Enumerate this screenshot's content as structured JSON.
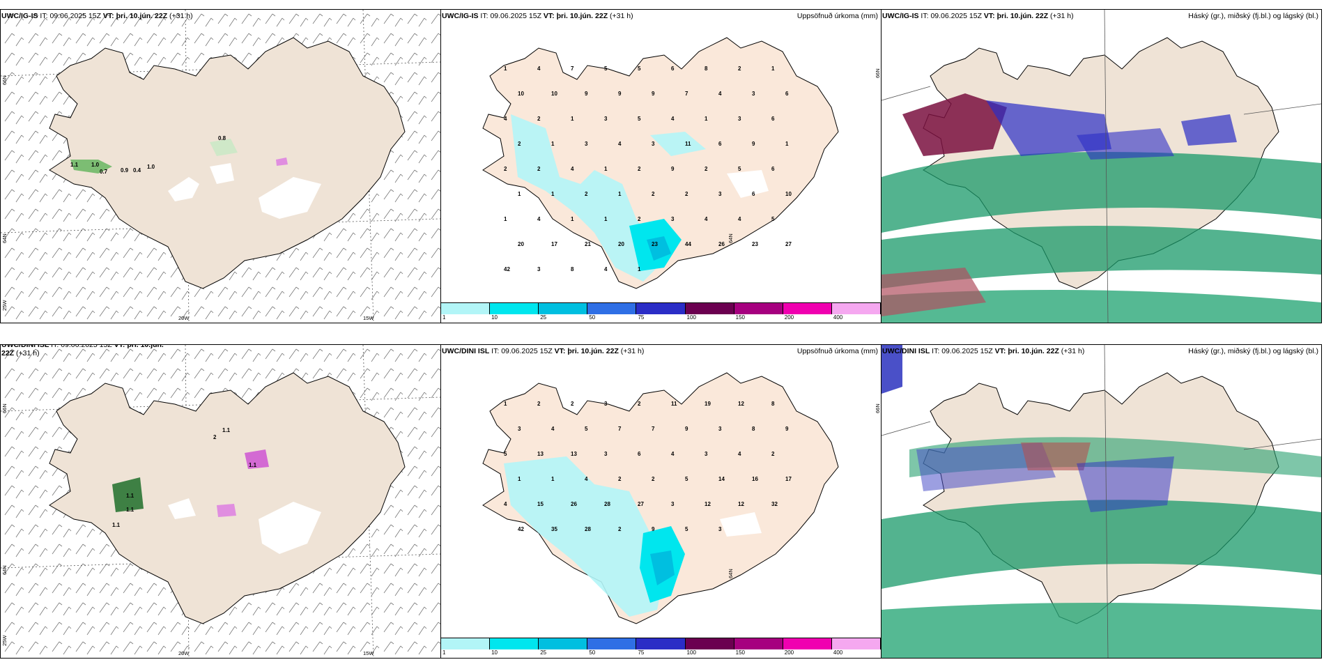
{
  "rows": [
    {
      "model": "UWC/IG-IS",
      "it_label": "IT:",
      "it_value": "09.06.2025 15Z",
      "vt_label": "VT:",
      "vt_value": "þri. 10.jún. 22Z",
      "offset": "(+31 h)"
    },
    {
      "model": "UWC/DINI ISL",
      "it_label": "IT:",
      "it_value": "09.06.2025 15Z",
      "vt_label": "VT:",
      "vt_value": "þri. 10.jún. 22Z",
      "offset": "(+31 h)"
    }
  ],
  "precip_title": "Uppsöfnuð úrkoma (mm)",
  "cloud_title": "Háský (gr.), miðský (fj.bl.) og lágský (bl.)",
  "grid_labels": {
    "lat66": "66N",
    "lat64": "64N",
    "lon20": "20W",
    "lon15": "15W",
    "lon25": "25W"
  },
  "colorbar": {
    "colors": [
      "#b2f5f7",
      "#00e6ee",
      "#00bfe0",
      "#2f6fe5",
      "#2b2dc6",
      "#6b0050",
      "#a6007f",
      "#f000b0",
      "#f5a8f0"
    ],
    "ticks": [
      "1",
      "10",
      "25",
      "50",
      "75",
      "100",
      "150",
      "200",
      "400"
    ]
  },
  "wind_values_top": [
    "0.8",
    "1.1",
    "1.0",
    "0.7",
    "0.9",
    "0.4",
    "1.0"
  ],
  "wind_values_bottom": [
    "1.1",
    "1.1",
    "1.1",
    "1.1",
    "2",
    "1.1"
  ],
  "precip_values_top": [
    "1",
    "4",
    "7",
    "5",
    "5",
    "6",
    "8",
    "2",
    "1",
    "10",
    "10",
    "9",
    "9",
    "9",
    "7",
    "4",
    "3",
    "6",
    "4",
    "2",
    "1",
    "3",
    "5",
    "4",
    "1",
    "3",
    "6",
    "2",
    "1",
    "3",
    "4",
    "3",
    "11",
    "6",
    "9",
    "1",
    "2",
    "2",
    "4",
    "1",
    "2",
    "9",
    "2",
    "5",
    "6",
    "1",
    "1",
    "2",
    "1",
    "2",
    "2",
    "3",
    "6",
    "10",
    "1",
    "4",
    "1",
    "1",
    "2",
    "3",
    "4",
    "4",
    "5",
    "20",
    "17",
    "21",
    "20",
    "23",
    "44",
    "26",
    "23",
    "27",
    "42",
    "3",
    "8",
    "4",
    "1"
  ],
  "precip_values_bottom": [
    "1",
    "2",
    "2",
    "3",
    "2",
    "11",
    "19",
    "12",
    "8",
    "3",
    "4",
    "5",
    "7",
    "7",
    "9",
    "3",
    "8",
    "9",
    "5",
    "13",
    "13",
    "3",
    "6",
    "4",
    "3",
    "4",
    "2",
    "1",
    "1",
    "4",
    "2",
    "2",
    "5",
    "14",
    "16",
    "17",
    "4",
    "15",
    "26",
    "28",
    "27",
    "3",
    "12",
    "12",
    "32",
    "42",
    "35",
    "28",
    "2",
    "9",
    "5",
    "3"
  ]
}
